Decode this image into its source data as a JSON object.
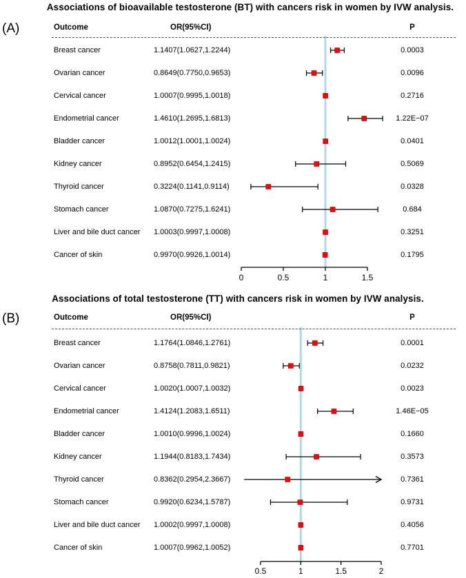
{
  "colors": {
    "marker_fill": "#ff0000",
    "marker_stroke": "#a40000",
    "error_bar": "#000000",
    "reference_line": "#add8e6",
    "axis": "#000000",
    "dashed_rule": "#4a4a4a",
    "text": "#000000"
  },
  "chart_data": [
    {
      "type": "forest",
      "panel_label": "(A)",
      "title": "Associations of bioavailable testosterone (BT) with cancers risk in women by IVW analysis.",
      "columns": {
        "outcome": "Outcome",
        "or_ci": "OR(95%CI)",
        "p": "P"
      },
      "xlabel": "",
      "xlim": [
        0,
        1.5
      ],
      "ref_line": 1,
      "legend": "none",
      "grid": false,
      "ticks": [
        {
          "value": 0,
          "label": "0"
        },
        {
          "value": 0.5,
          "label": "0.5"
        },
        {
          "value": 1,
          "label": "1"
        },
        {
          "value": 1.5,
          "label": "1.5"
        }
      ],
      "rows": [
        {
          "outcome": "Breast cancer",
          "or": 1.1407,
          "lo": 1.0627,
          "hi": 1.2244,
          "or_ci": "1.1407(1.0627,1.2244)",
          "p": "0.0003"
        },
        {
          "outcome": "Ovarian cancer",
          "or": 0.8649,
          "lo": 0.775,
          "hi": 0.9653,
          "or_ci": "0.8649(0.7750,0.9653)",
          "p": "0.0096"
        },
        {
          "outcome": "Cervical cancer",
          "or": 1.0007,
          "lo": 0.9995,
          "hi": 1.0018,
          "or_ci": "1.0007(0.9995,1.0018)",
          "p": "0.2716"
        },
        {
          "outcome": "Endometrial cancer",
          "or": 1.461,
          "lo": 1.2695,
          "hi": 1.6813,
          "or_ci": "1.4610(1.2695,1.6813)",
          "p": "1.22E−07"
        },
        {
          "outcome": "Bladder cancer",
          "or": 1.0012,
          "lo": 1.0001,
          "hi": 1.0024,
          "or_ci": "1.0012(1.0001,1.0024)",
          "p": "0.0401"
        },
        {
          "outcome": "Kidney cancer",
          "or": 0.8952,
          "lo": 0.6454,
          "hi": 1.2415,
          "or_ci": "0.8952(0.6454,1.2415)",
          "p": "0.5069"
        },
        {
          "outcome": "Thyroid cancer",
          "or": 0.3224,
          "lo": 0.1141,
          "hi": 0.9114,
          "or_ci": "0.3224(0.1141,0.9114)",
          "p": "0.0328"
        },
        {
          "outcome": "Stomach cancer",
          "or": 1.087,
          "lo": 0.7275,
          "hi": 1.6241,
          "or_ci": "1.0870(0.7275,1.6241)",
          "p": "0.684"
        },
        {
          "outcome": "Liver and bile duct cancer",
          "or": 1.0003,
          "lo": 0.9997,
          "hi": 1.0008,
          "or_ci": "1.0003(0.9997,1.0008)",
          "p": "0.3251"
        },
        {
          "outcome": "Cancer of skin",
          "or": 0.997,
          "lo": 0.9926,
          "hi": 1.0014,
          "or_ci": "0.9970(0.9926,1.0014)",
          "p": "0.1795"
        }
      ]
    },
    {
      "type": "forest",
      "panel_label": "(B)",
      "title": "Associations of total testosterone (TT) with cancers risk in women by IVW analysis.",
      "columns": {
        "outcome": "Outcome",
        "or_ci": "OR(95%CI)",
        "p": "P"
      },
      "xlabel": "",
      "xlim": [
        0.5,
        2
      ],
      "ref_line": 1,
      "legend": "none",
      "grid": false,
      "ticks": [
        {
          "value": 0.5,
          "label": "0.5"
        },
        {
          "value": 1,
          "label": "1"
        },
        {
          "value": 1.5,
          "label": "1.5"
        },
        {
          "value": 2,
          "label": "2"
        }
      ],
      "rows": [
        {
          "outcome": "Breast cancer",
          "or": 1.1764,
          "lo": 1.0846,
          "hi": 1.2761,
          "or_ci": "1.1764(1.0846,1.2761)",
          "p": "0.0001"
        },
        {
          "outcome": "Ovarian cancer",
          "or": 0.8758,
          "lo": 0.7811,
          "hi": 0.9821,
          "or_ci": "0.8758(0.7811,0.9821)",
          "p": "0.0232"
        },
        {
          "outcome": "Cervical cancer",
          "or": 1.002,
          "lo": 1.0007,
          "hi": 1.0032,
          "or_ci": "1.0020(1.0007,1.0032)",
          "p": "0.0023"
        },
        {
          "outcome": "Endometrial cancer",
          "or": 1.4124,
          "lo": 1.2083,
          "hi": 1.6511,
          "or_ci": "1.4124(1.2083,1.6511)",
          "p": "1.46E−05"
        },
        {
          "outcome": "Bladder cancer",
          "or": 1.001,
          "lo": 0.9996,
          "hi": 1.0024,
          "or_ci": "1.0010(0.9996,1.0024)",
          "p": "0.1660"
        },
        {
          "outcome": "Kidney cancer",
          "or": 1.1944,
          "lo": 0.8183,
          "hi": 1.7434,
          "or_ci": "1.1944(0.8183,1.7434)",
          "p": "0.3573"
        },
        {
          "outcome": "Thyroid cancer",
          "or": 0.8362,
          "lo": 0.2954,
          "hi": 2.3667,
          "or_ci": "0.8362(0.2954,2.3667)",
          "p": "0.7361",
          "hi_arrow": true,
          "lo_cap": false
        },
        {
          "outcome": "Stomach cancer",
          "or": 0.992,
          "lo": 0.6234,
          "hi": 1.5787,
          "or_ci": "0.9920(0.6234,1.5787)",
          "p": "0.9731"
        },
        {
          "outcome": "Liver and bile duct cancer",
          "or": 1.0002,
          "lo": 0.9997,
          "hi": 1.0008,
          "or_ci": "1.0002(0.9997,1.0008)",
          "p": "0.4056"
        },
        {
          "outcome": "Cancer of skin",
          "or": 1.0007,
          "lo": 0.9962,
          "hi": 1.0052,
          "or_ci": "1.0007(0.9962,1.0052)",
          "p": "0.7701"
        }
      ]
    }
  ]
}
